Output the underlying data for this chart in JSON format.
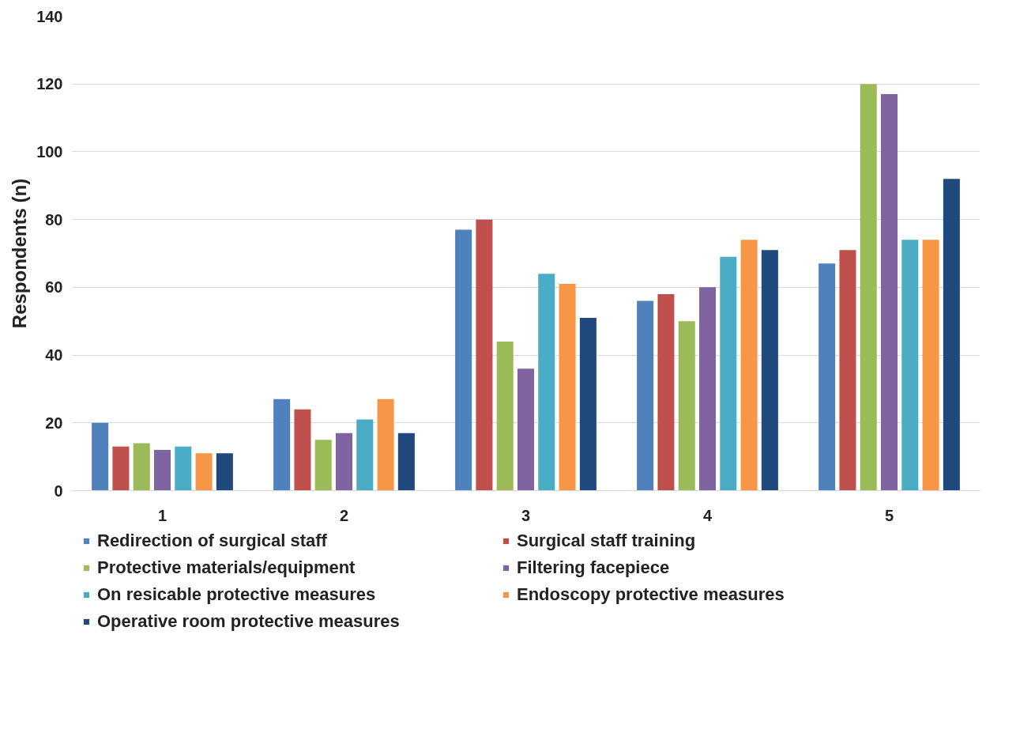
{
  "chart_data": {
    "type": "bar",
    "ylabel": "Respondents (n)",
    "categories": [
      "1",
      "2",
      "3",
      "4",
      "5"
    ],
    "ylim": [
      0,
      140
    ],
    "yticks": [
      0,
      20,
      40,
      60,
      80,
      100,
      120,
      140
    ],
    "grid": "y",
    "legend": "bottom",
    "series": [
      {
        "name": "Redirection of surgical staff",
        "color": "#4f81bd",
        "values": [
          20,
          27,
          77,
          56,
          67
        ]
      },
      {
        "name": "Surgical staff training",
        "color": "#c0504d",
        "values": [
          13,
          24,
          80,
          58,
          71
        ]
      },
      {
        "name": "Protective materials/equipment",
        "color": "#9bbb59",
        "values": [
          14,
          15,
          44,
          50,
          120
        ]
      },
      {
        "name": "Filtering facepiece",
        "color": "#8064a2",
        "values": [
          12,
          17,
          36,
          60,
          117
        ]
      },
      {
        "name": "On resicable protective measures",
        "color": "#4bacc6",
        "values": [
          13,
          21,
          64,
          69,
          74
        ]
      },
      {
        "name": "Endoscopy protective measures",
        "color": "#f79646",
        "values": [
          11,
          27,
          61,
          74,
          74
        ]
      },
      {
        "name": "Operative room protective measures",
        "color": "#1f497d",
        "values": [
          11,
          17,
          51,
          71,
          92
        ]
      }
    ]
  }
}
